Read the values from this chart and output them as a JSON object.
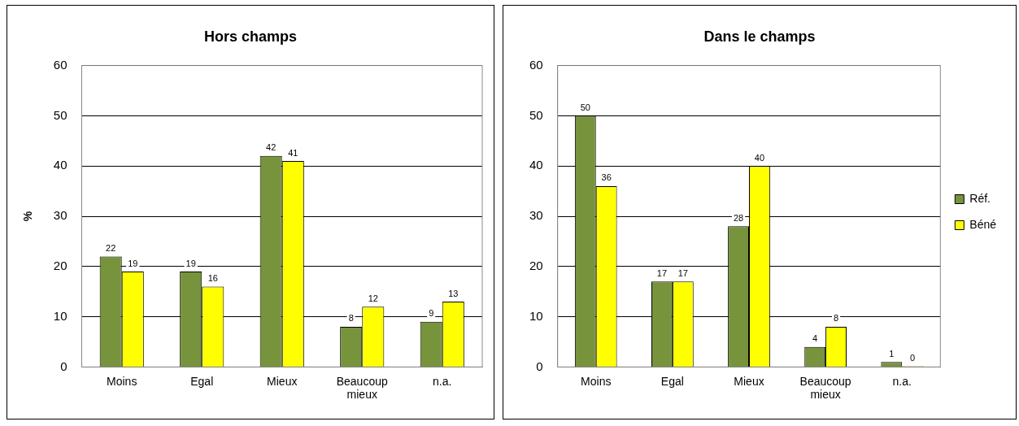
{
  "chart_data": [
    {
      "type": "bar",
      "title": "Hors champs",
      "ylabel": "%",
      "categories": [
        "Moins",
        "Egal",
        "Mieux",
        "Beaucoup mieux",
        "n.a."
      ],
      "series": [
        {
          "color": "#77933c",
          "values": [
            22,
            19,
            42,
            8,
            9
          ]
        },
        {
          "color": "#ffff00",
          "values": [
            19,
            16,
            41,
            12,
            13
          ]
        }
      ],
      "ylim": [
        0,
        60
      ],
      "yticks": [
        0,
        10,
        20,
        30,
        40,
        50,
        60
      ],
      "grid": "y",
      "data_labels": true,
      "legend": false
    },
    {
      "type": "bar",
      "title": "Dans le champs",
      "categories": [
        "Moins",
        "Egal",
        "Mieux",
        "Beaucoup mieux",
        "n.a."
      ],
      "series": [
        {
          "name": "Réf.",
          "color": "#77933c",
          "values": [
            50,
            17,
            28,
            4,
            1
          ]
        },
        {
          "name": "Béné",
          "color": "#ffff00",
          "values": [
            36,
            17,
            40,
            8,
            0
          ]
        }
      ],
      "ylim": [
        0,
        60
      ],
      "yticks": [
        0,
        10,
        20,
        30,
        40,
        50,
        60
      ],
      "grid": "y",
      "data_labels": true,
      "legend": "right"
    }
  ]
}
